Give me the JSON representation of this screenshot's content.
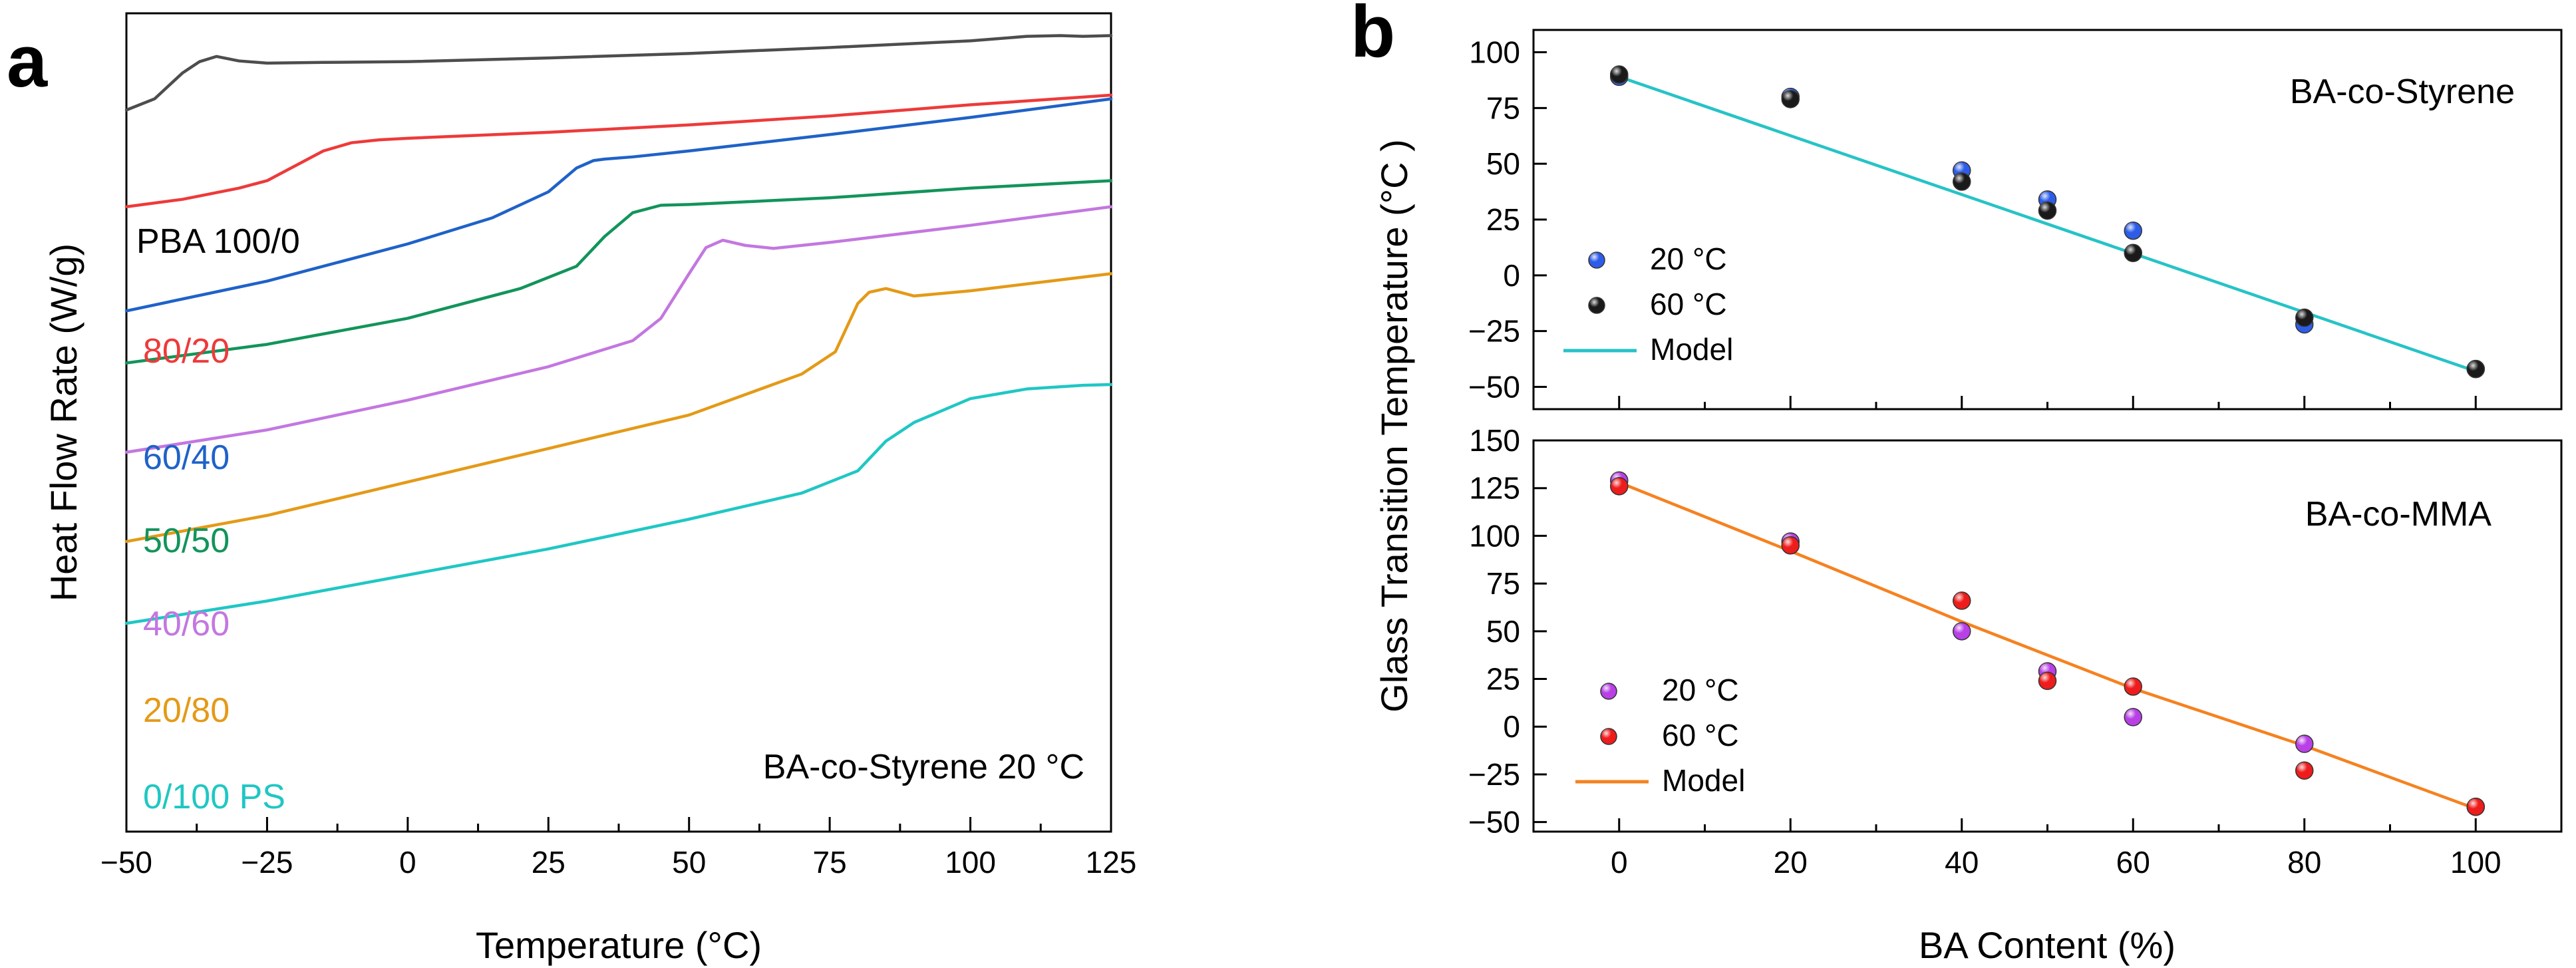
{
  "panel_a": {
    "letter": "a",
    "annotation": "BA-co-Styrene 20 °C",
    "chart_data": {
      "type": "line",
      "xlabel": "Temperature (°C)",
      "ylabel": "Heat Flow Rate (W/g)",
      "xlim": [
        -50,
        125
      ],
      "xticks": [
        "−50",
        "−25",
        "0",
        "25",
        "50",
        "75",
        "100",
        "125"
      ],
      "ylim": [
        -100,
        10
      ],
      "series": [
        {
          "name": "PBA 100/0",
          "color": "#4d4d4d",
          "x": [
            -50,
            -45,
            -40,
            -37,
            -34,
            -30,
            -25,
            -15,
            0,
            25,
            50,
            75,
            100,
            110,
            116,
            120,
            125
          ],
          "y": [
            -3,
            -1.5,
            2,
            3.5,
            4.2,
            3.6,
            3.3,
            3.4,
            3.5,
            4.0,
            4.6,
            5.4,
            6.3,
            6.9,
            7.0,
            6.9,
            7.0
          ]
        },
        {
          "name": "80/20",
          "color": "#ee3a3a",
          "x": [
            -50,
            -40,
            -30,
            -25,
            -20,
            -15,
            -10,
            -5,
            0,
            25,
            50,
            75,
            100,
            125
          ],
          "y": [
            -16,
            -15,
            -13.5,
            -12.5,
            -10.5,
            -8.5,
            -7.4,
            -7.0,
            -6.8,
            -6.0,
            -5.0,
            -3.8,
            -2.3,
            -1.0
          ]
        },
        {
          "name": "60/40",
          "color": "#1f62c8",
          "x": [
            -50,
            -25,
            0,
            15,
            25,
            30,
            33,
            35,
            40,
            50,
            75,
            100,
            125
          ],
          "y": [
            -30,
            -26,
            -21,
            -17.5,
            -14,
            -10.8,
            -9.8,
            -9.6,
            -9.3,
            -8.5,
            -6.3,
            -4.0,
            -1.5
          ]
        },
        {
          "name": "50/50",
          "color": "#12945a",
          "x": [
            -50,
            -25,
            0,
            20,
            30,
            35,
            40,
            45,
            50,
            75,
            100,
            125
          ],
          "y": [
            -37,
            -34.5,
            -31,
            -27,
            -24,
            -20,
            -16.8,
            -15.8,
            -15.7,
            -14.8,
            -13.5,
            -12.5
          ]
        },
        {
          "name": "40/60",
          "color": "#c377e0",
          "x": [
            -50,
            -25,
            0,
            25,
            40,
            45,
            50,
            53,
            56,
            60,
            65,
            75,
            100,
            125
          ],
          "y": [
            -49,
            -46,
            -42,
            -37.5,
            -34,
            -31,
            -25,
            -21.5,
            -20.5,
            -21.2,
            -21.6,
            -20.8,
            -18.5,
            -16
          ]
        },
        {
          "name": "20/80",
          "color": "#e49a17",
          "x": [
            -50,
            -25,
            0,
            25,
            50,
            70,
            76,
            80,
            82,
            85,
            90,
            100,
            125
          ],
          "y": [
            -61,
            -57.5,
            -53,
            -48.5,
            -44,
            -38.5,
            -35.5,
            -29,
            -27.5,
            -27.0,
            -28.0,
            -27.3,
            -25
          ]
        },
        {
          "name": "0/100 PS",
          "color": "#1fc7c4",
          "x": [
            -50,
            -25,
            0,
            25,
            50,
            70,
            80,
            85,
            90,
            100,
            110,
            120,
            125
          ],
          "y": [
            -72,
            -69,
            -65.5,
            -62,
            -58,
            -54.5,
            -51.5,
            -47.5,
            -45,
            -41.8,
            -40.5,
            -40.0,
            -39.9
          ]
        }
      ],
      "labels": [
        "PBA 100/0",
        "80/20",
        "60/40",
        "50/50",
        "40/60",
        "20/80",
        "0/100 PS"
      ]
    }
  },
  "panel_b": {
    "letter": "b",
    "chart_data": [
      {
        "type": "scatter",
        "title": "BA-co-Styrene",
        "ylabel": "Glass Transition Temperature (°C )",
        "xlabel": "BA Content (%)",
        "xlim": [
          -10,
          110
        ],
        "ylim": [
          -60,
          110
        ],
        "yticks": [
          100,
          75,
          50,
          25,
          0,
          -25,
          -50
        ],
        "series": [
          {
            "name": "20 °C",
            "color": "#2d5de8",
            "x": [
              0,
              20,
              40,
              50,
              60,
              80,
              100
            ],
            "y": [
              89,
              80,
              47,
              34,
              20,
              -22,
              -42
            ]
          },
          {
            "name": "60 °C",
            "color": "#1a1a1a",
            "x": [
              0,
              20,
              40,
              50,
              60,
              80,
              100
            ],
            "y": [
              90,
              79,
              42,
              29,
              10,
              -19,
              -42
            ]
          },
          {
            "name": "Model",
            "color": "#26c3c6",
            "x": [
              0,
              100
            ],
            "y": [
              89,
              -43
            ]
          }
        ],
        "legend": [
          "20 °C",
          "60 °C",
          "Model"
        ]
      },
      {
        "type": "scatter",
        "title": "BA-co-MMA",
        "ylabel": "Glass Transition Temperature (°C )",
        "xlabel": "BA Content (%)",
        "xlim": [
          -10,
          110
        ],
        "ylim": [
          -55,
          150
        ],
        "yticks": [
          150,
          125,
          100,
          75,
          50,
          25,
          0,
          -25,
          -50
        ],
        "xticks": [
          0,
          20,
          40,
          60,
          80,
          100
        ],
        "series": [
          {
            "name": "20 °C",
            "color": "#b840e6",
            "x": [
              0,
              20,
              40,
              50,
              60,
              80,
              100
            ],
            "y": [
              129,
              97,
              50,
              29,
              5,
              -9,
              -42
            ]
          },
          {
            "name": "60 °C",
            "color": "#ee1c1c",
            "x": [
              0,
              20,
              40,
              50,
              60,
              80,
              100
            ],
            "y": [
              126,
              95,
              66,
              24,
              21,
              -23,
              -42
            ]
          },
          {
            "name": "Model",
            "color": "#f58220",
            "x": [
              0,
              20,
              40,
              60,
              80,
              100
            ],
            "y": [
              128,
              92,
              55,
              20,
              -10,
              -43
            ]
          }
        ],
        "legend": [
          "20 °C",
          "60 °C",
          "Model"
        ]
      }
    ]
  }
}
